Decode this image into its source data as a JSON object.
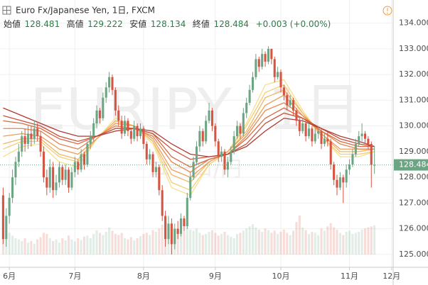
{
  "chart_data": {
    "type": "candlestick",
    "title": "Euro Fx/Japanese Yen, 1日, FXCM",
    "quote": {
      "open_label": "始値",
      "open": 128.481,
      "high_label": "高値",
      "high": 129.222,
      "low_label": "安値",
      "low": 128.134,
      "close_label": "終値",
      "close": 128.484,
      "change": "+0.003 (+0.00%)"
    },
    "watermark": "EURJPY, 1日",
    "watermark_sub": "ユーロ/円",
    "up_color": "#6ba583",
    "down_color": "#d75442",
    "xlim": [
      -1,
      125
    ],
    "xticks": [
      {
        "value": 2,
        "label": "6月"
      },
      {
        "value": 23,
        "label": "7月"
      },
      {
        "value": 45,
        "label": "8月"
      },
      {
        "value": 68,
        "label": "9月"
      },
      {
        "value": 89,
        "label": "10月"
      },
      {
        "value": 111,
        "label": "11月"
      },
      {
        "value": 124.5,
        "label": "12月"
      }
    ],
    "ylim": [
      124.5,
      134.9
    ],
    "yticks": [
      {
        "value": 125,
        "label": "125.000"
      },
      {
        "value": 126,
        "label": "126.000"
      },
      {
        "value": 127,
        "label": "127.000"
      },
      {
        "value": 128,
        "label": "128.000"
      },
      {
        "value": 129,
        "label": "129.000"
      },
      {
        "value": 130,
        "label": "130.000"
      },
      {
        "value": 131,
        "label": "131.000"
      },
      {
        "value": 132,
        "label": "132.000"
      },
      {
        "value": 133,
        "label": "133.000"
      },
      {
        "value": 134,
        "label": "134.000"
      }
    ],
    "grid": true,
    "ohlc": [
      [
        127.3,
        127.6,
        125.4,
        125.6
      ],
      [
        125.6,
        126.8,
        125.3,
        126.5
      ],
      [
        126.5,
        127.4,
        126.2,
        127.2
      ],
      [
        127.2,
        128.3,
        127.0,
        128.0
      ],
      [
        128.0,
        128.8,
        127.7,
        128.6
      ],
      [
        128.6,
        129.3,
        128.4,
        129.0
      ],
      [
        129.0,
        129.8,
        128.8,
        129.6
      ],
      [
        129.6,
        129.9,
        129.0,
        129.3
      ],
      [
        129.3,
        130.0,
        129.1,
        129.7
      ],
      [
        129.7,
        130.0,
        129.2,
        129.5
      ],
      [
        129.5,
        130.2,
        129.3,
        129.9
      ],
      [
        129.9,
        130.1,
        129.4,
        129.6
      ],
      [
        129.6,
        129.8,
        128.8,
        129.0
      ],
      [
        129.0,
        129.2,
        127.8,
        128.0
      ],
      [
        128.0,
        128.3,
        127.3,
        127.6
      ],
      [
        127.6,
        128.7,
        127.4,
        128.4
      ],
      [
        128.4,
        128.6,
        127.2,
        127.5
      ],
      [
        127.5,
        128.1,
        127.3,
        127.8
      ],
      [
        127.8,
        128.6,
        127.6,
        128.4
      ],
      [
        128.4,
        128.5,
        127.7,
        127.9
      ],
      [
        127.9,
        128.5,
        127.7,
        128.3
      ],
      [
        128.3,
        128.4,
        127.4,
        127.6
      ],
      [
        127.6,
        128.4,
        127.5,
        128.2
      ],
      [
        128.2,
        128.8,
        128.0,
        128.6
      ],
      [
        128.6,
        128.7,
        128.1,
        128.3
      ],
      [
        128.3,
        129.1,
        128.2,
        128.9
      ],
      [
        128.9,
        129.0,
        128.3,
        128.5
      ],
      [
        128.5,
        129.4,
        128.4,
        129.3
      ],
      [
        129.3,
        129.8,
        129.1,
        129.6
      ],
      [
        129.6,
        130.3,
        129.4,
        130.1
      ],
      [
        130.1,
        130.8,
        129.9,
        130.6
      ],
      [
        130.6,
        130.7,
        130.1,
        130.3
      ],
      [
        130.3,
        131.3,
        130.2,
        131.1
      ],
      [
        131.1,
        131.7,
        130.9,
        131.5
      ],
      [
        131.5,
        132.1,
        131.3,
        131.9
      ],
      [
        131.9,
        132.0,
        131.2,
        131.4
      ],
      [
        131.4,
        131.5,
        130.4,
        130.6
      ],
      [
        130.6,
        130.8,
        130.0,
        130.2
      ],
      [
        130.2,
        130.4,
        129.5,
        129.7
      ],
      [
        129.7,
        130.4,
        129.6,
        130.2
      ],
      [
        130.2,
        130.3,
        129.6,
        129.8
      ],
      [
        129.8,
        129.9,
        129.3,
        129.5
      ],
      [
        129.5,
        130.2,
        129.4,
        130.0
      ],
      [
        130.0,
        130.1,
        129.4,
        129.6
      ],
      [
        129.6,
        130.1,
        129.5,
        129.9
      ],
      [
        129.9,
        130.0,
        129.1,
        129.3
      ],
      [
        129.3,
        129.4,
        128.5,
        128.7
      ],
      [
        128.7,
        129.1,
        128.5,
        128.9
      ],
      [
        128.9,
        129.0,
        128.0,
        128.2
      ],
      [
        128.2,
        128.6,
        128.0,
        128.4
      ],
      [
        128.4,
        128.5,
        127.3,
        127.5
      ],
      [
        127.5,
        127.7,
        126.3,
        126.5
      ],
      [
        126.5,
        126.7,
        125.3,
        125.6
      ],
      [
        125.6,
        126.5,
        125.4,
        126.2
      ],
      [
        126.2,
        126.4,
        125.0,
        125.4
      ],
      [
        125.4,
        126.2,
        125.2,
        126.0
      ],
      [
        126.0,
        126.3,
        125.6,
        125.8
      ],
      [
        125.8,
        126.6,
        125.7,
        126.4
      ],
      [
        126.4,
        126.5,
        125.9,
        126.1
      ],
      [
        126.1,
        127.4,
        126.0,
        127.2
      ],
      [
        127.2,
        128.2,
        127.1,
        128.0
      ],
      [
        128.0,
        128.8,
        127.9,
        128.6
      ],
      [
        128.6,
        129.4,
        128.5,
        129.2
      ],
      [
        129.2,
        130.0,
        129.0,
        129.8
      ],
      [
        129.8,
        129.9,
        129.2,
        129.4
      ],
      [
        129.4,
        130.4,
        129.3,
        130.2
      ],
      [
        130.2,
        130.9,
        130.1,
        130.6
      ],
      [
        130.6,
        130.7,
        129.8,
        130.0
      ],
      [
        130.0,
        130.1,
        129.2,
        129.4
      ],
      [
        129.4,
        129.5,
        128.6,
        128.8
      ],
      [
        128.8,
        129.2,
        128.6,
        129.0
      ],
      [
        129.0,
        129.1,
        128.1,
        128.3
      ],
      [
        128.3,
        128.8,
        128.0,
        128.6
      ],
      [
        128.6,
        129.2,
        128.5,
        129.0
      ],
      [
        129.0,
        129.8,
        128.9,
        129.6
      ],
      [
        129.6,
        130.2,
        129.5,
        130.0
      ],
      [
        130.0,
        130.1,
        129.5,
        129.7
      ],
      [
        129.7,
        130.7,
        129.6,
        130.5
      ],
      [
        130.5,
        131.1,
        130.3,
        130.9
      ],
      [
        130.9,
        131.6,
        130.8,
        131.4
      ],
      [
        131.4,
        132.1,
        131.3,
        131.9
      ],
      [
        131.9,
        132.8,
        131.8,
        132.6
      ],
      [
        132.6,
        132.7,
        132.1,
        132.3
      ],
      [
        132.3,
        133.0,
        132.2,
        132.8
      ],
      [
        132.8,
        132.9,
        132.3,
        132.5
      ],
      [
        132.5,
        133.1,
        132.4,
        133.0
      ],
      [
        133.0,
        133.0,
        132.4,
        132.6
      ],
      [
        132.6,
        132.7,
        131.7,
        131.9
      ],
      [
        131.9,
        132.3,
        131.8,
        132.1
      ],
      [
        132.1,
        132.2,
        131.3,
        131.5
      ],
      [
        131.5,
        131.6,
        131.0,
        131.2
      ],
      [
        131.2,
        131.3,
        130.6,
        130.8
      ],
      [
        130.8,
        131.2,
        130.7,
        131.0
      ],
      [
        131.0,
        131.1,
        130.4,
        130.6
      ],
      [
        130.6,
        130.7,
        130.0,
        130.2
      ],
      [
        130.2,
        130.3,
        129.6,
        129.8
      ],
      [
        129.8,
        130.3,
        129.7,
        130.1
      ],
      [
        130.1,
        130.2,
        129.4,
        129.6
      ],
      [
        129.6,
        130.1,
        129.5,
        129.9
      ],
      [
        129.9,
        130.0,
        129.2,
        129.4
      ],
      [
        129.4,
        129.9,
        129.3,
        129.7
      ],
      [
        129.7,
        130.0,
        129.5,
        129.8
      ],
      [
        129.8,
        129.9,
        129.1,
        129.3
      ],
      [
        129.3,
        129.7,
        129.2,
        129.5
      ],
      [
        129.5,
        129.8,
        129.2,
        129.4
      ],
      [
        129.4,
        129.5,
        128.3,
        128.5
      ],
      [
        128.5,
        128.6,
        127.7,
        127.9
      ],
      [
        127.9,
        128.1,
        127.3,
        127.6
      ],
      [
        127.6,
        128.2,
        127.5,
        128.0
      ],
      [
        128.0,
        128.1,
        127.0,
        127.8
      ],
      [
        127.8,
        128.5,
        127.6,
        128.3
      ],
      [
        128.3,
        128.7,
        128.1,
        128.5
      ],
      [
        128.5,
        129.1,
        128.4,
        128.9
      ],
      [
        128.9,
        129.5,
        128.8,
        129.3
      ],
      [
        129.3,
        129.8,
        129.2,
        129.6
      ],
      [
        129.6,
        130.1,
        129.4,
        129.7
      ],
      [
        129.7,
        129.8,
        129.3,
        129.5
      ],
      [
        129.5,
        129.6,
        129.1,
        129.3
      ],
      [
        129.3,
        129.4,
        127.6,
        128.481
      ],
      [
        128.481,
        129.222,
        128.134,
        128.484
      ]
    ],
    "volume": [
      30,
      45,
      40,
      35,
      30,
      28,
      25,
      30,
      22,
      25,
      20,
      28,
      32,
      40,
      38,
      30,
      25,
      28,
      22,
      30,
      26,
      35,
      28,
      24,
      30,
      27,
      33,
      35,
      30,
      38,
      45,
      40,
      36,
      42,
      50,
      44,
      38,
      36,
      40,
      30,
      28,
      32,
      26,
      30,
      34,
      38,
      40,
      36,
      45,
      42,
      48,
      55,
      60,
      52,
      58,
      45,
      40,
      38,
      42,
      50,
      46,
      44,
      48,
      40,
      36,
      38,
      42,
      45,
      40,
      35,
      38,
      42,
      36,
      33,
      30,
      38,
      40,
      44,
      48,
      52,
      56,
      50,
      46,
      42,
      48,
      45,
      40,
      44,
      38,
      42,
      46,
      40,
      36,
      44,
      60,
      72,
      50,
      45,
      38,
      42,
      40,
      36,
      48,
      44,
      52,
      58,
      50,
      46,
      40,
      36,
      42,
      44,
      38,
      40,
      42,
      46,
      48,
      50,
      52,
      54
    ],
    "ribbon": {
      "x": [
        0,
        6,
        12,
        18,
        24,
        30,
        36,
        42,
        48,
        54,
        60,
        66,
        72,
        78,
        84,
        90,
        96,
        102,
        108,
        114,
        119
      ],
      "series": [
        {
          "color": "#f6e08c",
          "values": [
            128.8,
            129.2,
            129.3,
            128.6,
            128.4,
            129.5,
            130.3,
            130.0,
            129.3,
            127.6,
            127.3,
            128.5,
            129.0,
            130.1,
            131.6,
            131.8,
            130.6,
            129.6,
            128.8,
            128.8,
            129.0
          ]
        },
        {
          "color": "#f4cd78",
          "values": [
            129.1,
            129.4,
            129.4,
            128.8,
            128.6,
            129.5,
            130.2,
            130.0,
            129.4,
            127.8,
            127.5,
            128.5,
            129.0,
            130.0,
            131.3,
            131.6,
            130.5,
            129.6,
            128.9,
            128.9,
            129.0
          ]
        },
        {
          "color": "#f1b767",
          "values": [
            129.3,
            129.5,
            129.5,
            128.9,
            128.7,
            129.5,
            130.2,
            130.0,
            129.4,
            128.1,
            127.8,
            128.6,
            129.0,
            129.8,
            131.1,
            131.4,
            130.5,
            129.7,
            129.0,
            129.0,
            129.1
          ]
        },
        {
          "color": "#ec9f5b",
          "values": [
            129.6,
            129.7,
            129.6,
            129.1,
            128.9,
            129.5,
            130.1,
            130.0,
            129.5,
            128.3,
            128.0,
            128.6,
            129.0,
            129.7,
            130.8,
            131.2,
            130.4,
            129.7,
            129.1,
            129.1,
            129.1
          ]
        },
        {
          "color": "#e4864f",
          "values": [
            129.9,
            129.9,
            129.8,
            129.3,
            129.1,
            129.6,
            130.0,
            129.9,
            129.6,
            128.6,
            128.2,
            128.7,
            128.9,
            129.6,
            130.6,
            130.9,
            130.4,
            129.8,
            129.3,
            129.1,
            129.1
          ]
        },
        {
          "color": "#d76b45",
          "values": [
            130.2,
            130.1,
            129.9,
            129.5,
            129.3,
            129.6,
            129.9,
            129.9,
            129.7,
            128.8,
            128.4,
            128.7,
            128.9,
            129.5,
            130.3,
            130.7,
            130.3,
            129.8,
            129.4,
            129.2,
            129.2
          ]
        },
        {
          "color": "#c6533b",
          "values": [
            130.4,
            130.2,
            130.0,
            129.6,
            129.4,
            129.6,
            129.9,
            129.9,
            129.7,
            129.1,
            128.7,
            128.8,
            128.9,
            129.3,
            130.1,
            130.5,
            130.3,
            129.9,
            129.5,
            129.3,
            129.2
          ]
        },
        {
          "color": "#ad3c33",
          "values": [
            130.7,
            130.4,
            130.1,
            129.8,
            129.6,
            129.6,
            129.8,
            129.9,
            129.8,
            129.3,
            128.9,
            128.8,
            128.9,
            129.2,
            129.8,
            130.3,
            130.2,
            129.9,
            129.6,
            129.4,
            129.2
          ]
        }
      ]
    }
  }
}
